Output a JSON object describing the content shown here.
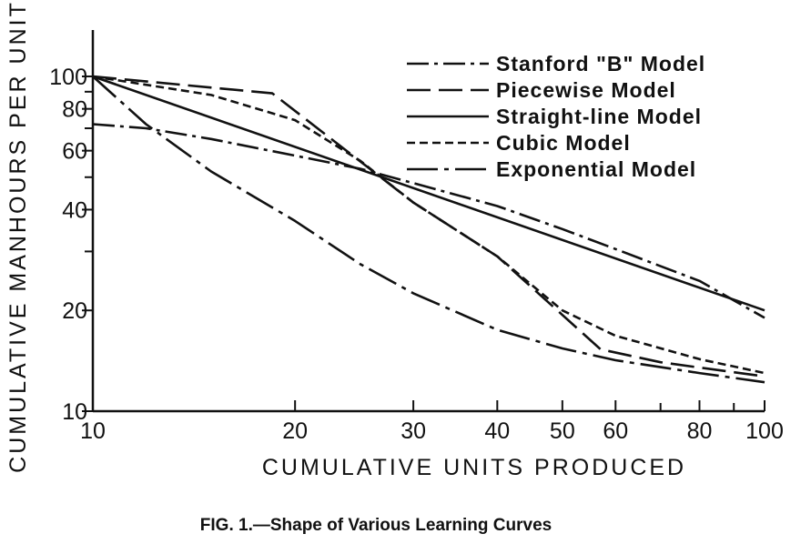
{
  "caption": "FIG. 1.—Shape of Various Learning Curves",
  "chart_data": {
    "type": "line",
    "xlabel": "CUMULATIVE UNITS PRODUCED",
    "ylabel": "CUMULATIVE MANHOURS PER UNIT",
    "xscale": "log",
    "yscale": "log",
    "xlim": [
      10,
      100
    ],
    "ylim": [
      10,
      100
    ],
    "x_ticks": [
      10,
      20,
      30,
      40,
      50,
      60,
      80,
      100
    ],
    "x_minor_ticks": [
      70,
      90
    ],
    "y_ticks": [
      10,
      20,
      40,
      60,
      80,
      100
    ],
    "y_minor_ticks": [
      30,
      50,
      70,
      90
    ],
    "grid": false,
    "legend_position": "top-right",
    "series": [
      {
        "name": "Stanford \"B\" Model",
        "dash": "dash-dot",
        "color": "#111111",
        "points": [
          [
            10,
            72
          ],
          [
            12,
            70
          ],
          [
            15,
            65
          ],
          [
            20,
            58
          ],
          [
            25,
            53
          ],
          [
            30,
            48
          ],
          [
            40,
            41
          ],
          [
            50,
            35
          ],
          [
            60,
            30.5
          ],
          [
            80,
            24.5
          ],
          [
            100,
            19
          ]
        ]
      },
      {
        "name": "Piecewise Model",
        "dash": "long-dash",
        "color": "#111111",
        "points": [
          [
            10,
            100
          ],
          [
            18.5,
            89
          ],
          [
            30,
            42
          ],
          [
            40,
            29
          ],
          [
            57,
            15.3
          ],
          [
            70,
            14
          ],
          [
            100,
            12.7
          ]
        ]
      },
      {
        "name": "Straight-line Model",
        "dash": "solid",
        "color": "#111111",
        "points": [
          [
            10,
            100
          ],
          [
            100,
            20
          ]
        ]
      },
      {
        "name": "Cubic Model",
        "dash": "short-dash",
        "color": "#111111",
        "points": [
          [
            10,
            100
          ],
          [
            15,
            88
          ],
          [
            20,
            74
          ],
          [
            25,
            56
          ],
          [
            30,
            42
          ],
          [
            40,
            29
          ],
          [
            50,
            20
          ],
          [
            60,
            16.8
          ],
          [
            80,
            14.3
          ],
          [
            100,
            13
          ]
        ]
      },
      {
        "name": "Exponential Model",
        "dash": "dash-dot-long",
        "color": "#111111",
        "points": [
          [
            10,
            100
          ],
          [
            12,
            72
          ],
          [
            15,
            52
          ],
          [
            20,
            37
          ],
          [
            25,
            27.5
          ],
          [
            30,
            22.5
          ],
          [
            40,
            17.5
          ],
          [
            50,
            15.4
          ],
          [
            60,
            14.2
          ],
          [
            80,
            13
          ],
          [
            100,
            12.2
          ]
        ]
      }
    ]
  }
}
